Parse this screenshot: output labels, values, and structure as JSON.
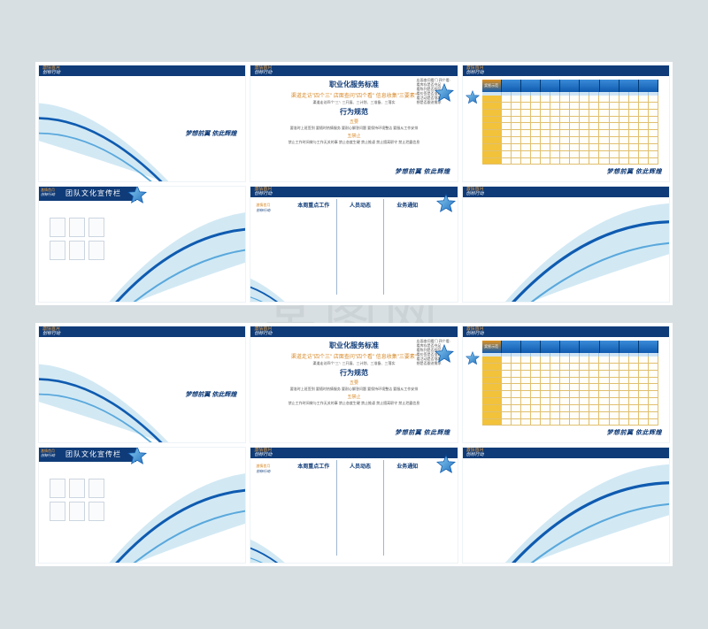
{
  "colors": {
    "page_bg": "#d8dfe2",
    "panel_bg": "#ffffff",
    "navy": "#0f3b78",
    "blue_mid": "#3a8bd8",
    "blue_light": "#a7d1ea",
    "swoosh_fill": "#bfe0f0",
    "swoosh_stroke": "#0f5bb0",
    "orange": "#f2a23a",
    "gold": "#f2c23a",
    "table_grid": "#e0c070",
    "text_body": "#555555"
  },
  "topbar": {
    "line1": "激情首月",
    "line2": "创标行动"
  },
  "slogan": {
    "part1": "梦想前翼",
    "part2": "依此辉煌",
    "full": "梦想前翼 依此辉煌"
  },
  "panel_a4": {
    "title": "团队文化宣传栏",
    "badge_l1": "激情首月",
    "badge_l2": "创标行动",
    "frame_count": 6
  },
  "panel_a2": {
    "heading1": "职业化服务标准",
    "sub1": "渠道走访\"四个三\" 店面查问\"四个看\" 信息收集\"三要素\"",
    "line1": "渠道走访四个\"三\": 三开展、三计划、三准备、三落实",
    "heading2": "行为规范",
    "sec1": "五要",
    "sec1_txt": "要准时上班签到 要随时热情服务 要耐心解答问题 要保持环境整洁 要服从工作安排",
    "sec2": "五禁止",
    "sec2_txt": "禁止工作时间做与工作无关的事 禁止态度生硬 禁止推诿 禁止擅离职守 禁止泄露信息",
    "side_title": "店面查问看门 四个看:",
    "side_lines": [
      "看库存是否充足",
      "看陈列是否规范",
      "看价签是否准确",
      "看活动是否落地",
      "想是否跟进需求"
    ]
  },
  "panel_a5": {
    "logo_l1": "激情首月",
    "logo_l2": "创标行动",
    "col1": "本周重点工作",
    "col2": "人员动态",
    "col3": "业务通知"
  },
  "panel_a3": {
    "corner_label": "奖惩示范",
    "column_count": 8,
    "row_count": 10,
    "sub_labels_per_col": 2
  },
  "watermark": "某图网"
}
